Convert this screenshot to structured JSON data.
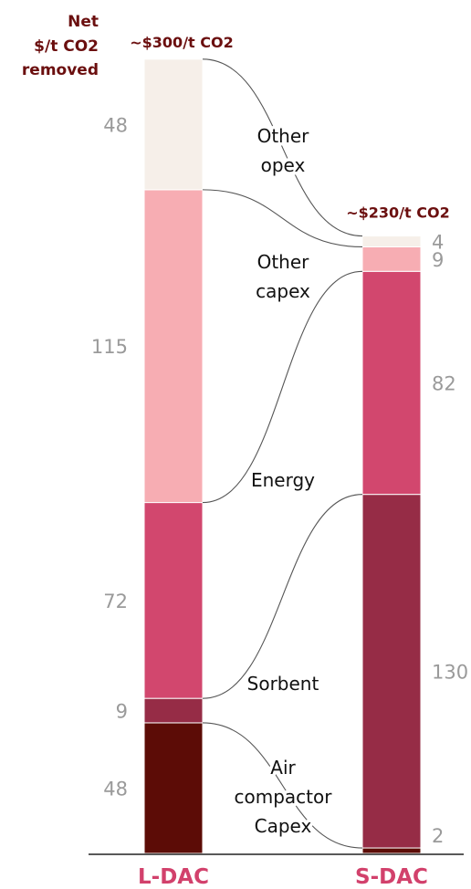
{
  "chart_data": {
    "type": "bar",
    "stacked": true,
    "ylabel": [
      "Net",
      "$/t CO2",
      "removed"
    ],
    "categories": [
      "L-DAC",
      "S-DAC"
    ],
    "totals": [
      "~$300/t CO2",
      "~$230/t CO2"
    ],
    "segments": [
      {
        "name": "Air compactor Capex",
        "label_lines": [
          "Air",
          "compactor",
          "Capex"
        ],
        "values": [
          48,
          2
        ],
        "value_labels": [
          "48",
          "2"
        ],
        "color": "#5c0c06"
      },
      {
        "name": "Sorbent",
        "label_lines": [
          "Sorbent"
        ],
        "values": [
          9,
          130
        ],
        "value_labels": [
          "9",
          "130"
        ],
        "color": "#962c46"
      },
      {
        "name": "Energy",
        "label_lines": [
          "Energy"
        ],
        "values": [
          72,
          82
        ],
        "value_labels": [
          "72",
          "82"
        ],
        "color": "#d2476e"
      },
      {
        "name": "Other capex",
        "label_lines": [
          "Other",
          "capex"
        ],
        "values": [
          115,
          9
        ],
        "value_labels": [
          "115",
          "9"
        ],
        "color": "#f7adb3"
      },
      {
        "name": "Other opex",
        "label_lines": [
          "Other",
          "opex"
        ],
        "values": [
          48,
          4
        ],
        "value_labels": [
          "48",
          "4"
        ],
        "color": "#f6efe9"
      }
    ],
    "legend": "inline-between-bars",
    "grid": false
  }
}
